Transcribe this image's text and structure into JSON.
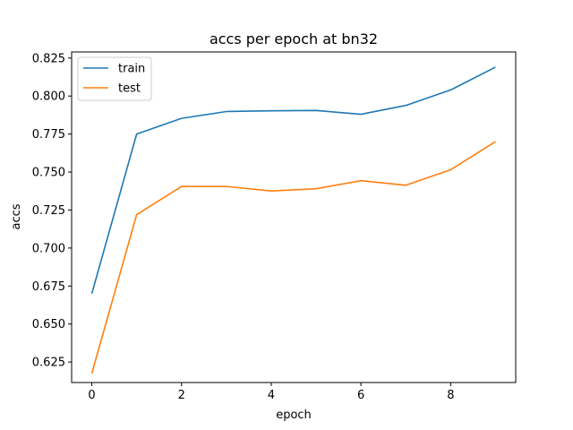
{
  "chart_data": {
    "type": "line",
    "title": "accs per epoch at bn32",
    "xlabel": "epoch",
    "ylabel": "accs",
    "xlim": [
      -0.45,
      9.45
    ],
    "ylim": [
      0.6115,
      0.829
    ],
    "xticks": [
      0,
      2,
      4,
      6,
      8
    ],
    "yticks": [
      0.625,
      0.65,
      0.675,
      0.7,
      0.725,
      0.75,
      0.775,
      0.8,
      0.825
    ],
    "ytick_labels": [
      "0.625",
      "0.650",
      "0.675",
      "0.700",
      "0.725",
      "0.750",
      "0.775",
      "0.800",
      "0.825"
    ],
    "x": [
      0,
      1,
      2,
      3,
      4,
      5,
      6,
      7,
      8,
      9
    ],
    "series": [
      {
        "name": "train",
        "color": "#1f77b4",
        "values": [
          0.67,
          0.775,
          0.7853,
          0.7898,
          0.7903,
          0.7905,
          0.788,
          0.7938,
          0.804,
          0.819
        ]
      },
      {
        "name": "test",
        "color": "#ff7f0e",
        "values": [
          0.6175,
          0.722,
          0.7405,
          0.7405,
          0.7375,
          0.739,
          0.7443,
          0.7413,
          0.7515,
          0.77
        ]
      }
    ],
    "legend_position": "top-left",
    "grid": false
  }
}
